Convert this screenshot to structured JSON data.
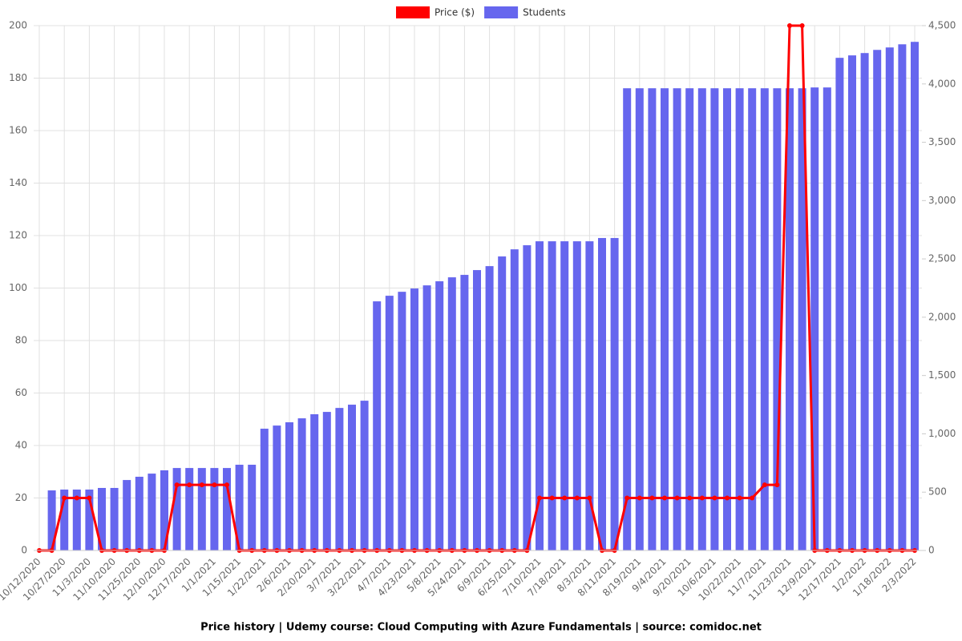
{
  "chart_data": {
    "type": "bar-line",
    "title": "Price history | Udemy course: Cloud Computing with Azure Fundamentals | source: comidoc.net",
    "categories": [
      "10/12/2020",
      null,
      "10/27/2020",
      null,
      "11/3/2020",
      null,
      "11/10/2020",
      null,
      "11/25/2020",
      null,
      "12/10/2020",
      null,
      "12/17/2020",
      null,
      "1/1/2021",
      null,
      "1/15/2021",
      null,
      "1/22/2021",
      null,
      "2/6/2021",
      null,
      "2/20/2021",
      null,
      "3/7/2021",
      null,
      "3/22/2021",
      null,
      "4/7/2021",
      null,
      "4/23/2021",
      null,
      "5/8/2021",
      null,
      "5/24/2021",
      null,
      "6/9/2021",
      null,
      "6/25/2021",
      null,
      "7/10/2021",
      null,
      "7/18/2021",
      null,
      "8/3/2021",
      null,
      "8/11/2021",
      null,
      "8/19/2021",
      null,
      "9/4/2021",
      null,
      "9/20/2021",
      null,
      "10/6/2021",
      null,
      "10/22/2021",
      null,
      "11/7/2021",
      null,
      "11/23/2021",
      null,
      "12/9/2021",
      null,
      "12/17/2021",
      null,
      "1/2/2022",
      null,
      "1/18/2022",
      null,
      "2/3/2022"
    ],
    "series": [
      {
        "name": "Price ($)",
        "type": "line",
        "color": "#ff0000",
        "values": [
          0,
          0,
          19.99,
          19.99,
          19.99,
          0,
          0,
          0,
          0,
          0,
          0,
          24.99,
          24.99,
          24.99,
          24.99,
          24.99,
          0,
          0,
          0,
          0,
          0,
          0,
          0,
          0,
          0,
          0,
          0,
          0,
          0,
          0,
          0,
          0,
          0,
          0,
          0,
          0,
          0,
          0,
          0,
          0,
          19.99,
          19.99,
          19.99,
          19.99,
          19.99,
          0,
          0,
          19.99,
          19.99,
          19.99,
          19.99,
          19.99,
          19.99,
          19.99,
          19.99,
          19.99,
          19.99,
          19.99,
          24.99,
          24.99,
          199.99,
          199.99,
          0,
          0,
          0,
          0,
          0,
          0,
          0,
          0,
          0
        ]
      },
      {
        "name": "Students",
        "type": "bar",
        "axis": "y2",
        "color": "#6666ee",
        "values": [
          null,
          515,
          522,
          522,
          522,
          536,
          536,
          604,
          632,
          659,
          687,
          707,
          707,
          707,
          707,
          707,
          735,
          735,
          1044,
          1071,
          1099,
          1133,
          1168,
          1188,
          1222,
          1250,
          1284,
          2136,
          2184,
          2218,
          2246,
          2273,
          2308,
          2342,
          2363,
          2404,
          2438,
          2521,
          2582,
          2617,
          2651,
          2651,
          2651,
          2651,
          2651,
          2679,
          2679,
          3963,
          3963,
          3963,
          3963,
          3963,
          3963,
          3963,
          3963,
          3963,
          3963,
          3963,
          3963,
          3963,
          3963,
          3963,
          3970,
          3970,
          4224,
          4245,
          4265,
          4292,
          4313,
          4340,
          4361
        ]
      }
    ],
    "ylim": [
      0,
      200
    ],
    "yticks": [
      0,
      20,
      40,
      60,
      80,
      100,
      120,
      140,
      160,
      180,
      200
    ],
    "y2lim": [
      0,
      4500
    ],
    "y2ticks": [
      0,
      500,
      {
        "value": 1000,
        "label": "1,000"
      },
      {
        "value": 1500,
        "label": "1,500"
      },
      {
        "value": 2000,
        "label": "2,000"
      },
      {
        "value": 2500,
        "label": "2,500"
      },
      {
        "value": 3000,
        "label": "3,000"
      },
      {
        "value": 3500,
        "label": "3,500"
      },
      {
        "value": 4000,
        "label": "4,000"
      },
      {
        "value": 4500,
        "label": "4,500"
      }
    ],
    "grid": true
  }
}
